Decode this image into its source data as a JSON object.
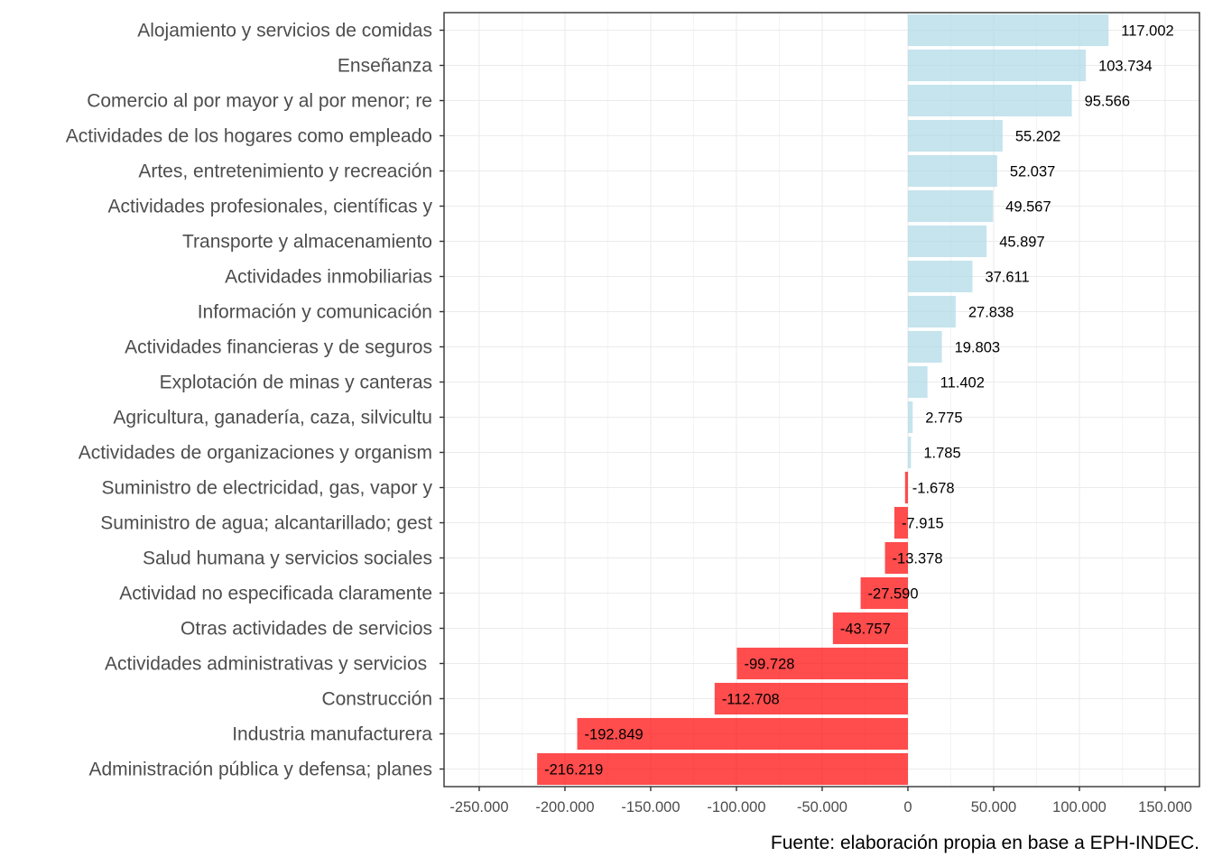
{
  "chart_data": {
    "type": "bar",
    "orientation": "horizontal",
    "title": "",
    "xlabel": "",
    "ylabel": "",
    "caption": "Fuente: elaboración propia en base a EPH-INDEC.",
    "xlim": [
      -270500,
      170000
    ],
    "x_ticks": [
      -250000,
      -200000,
      -150000,
      -100000,
      -50000,
      0,
      50000,
      100000,
      150000
    ],
    "x_tick_labels": [
      "-250.000",
      "-200.000",
      "-150.000",
      "-100.000",
      "-50.000",
      "0",
      "50.000",
      "100.000",
      "150.000"
    ],
    "grid": true,
    "legend": "none",
    "colors": {
      "positive": "#add8e6",
      "negative": "#ff0000",
      "bar_opacity": 0.7
    },
    "categories": [
      "Alojamiento y servicios de comidas",
      "Enseñanza",
      "Comercio al por mayor y al por menor; re",
      "Actividades de los hogares como empleado",
      "Artes, entretenimiento y recreación",
      "Actividades profesionales, científicas y",
      "Transporte y almacenamiento",
      "Actividades inmobiliarias",
      "Información y comunicación",
      "Actividades financieras y de seguros",
      "Explotación de minas y canteras",
      "Agricultura, ganadería, caza, silvicultu",
      "Actividades de organizaciones y organism",
      "Suministro de electricidad, gas, vapor y",
      "Suministro de agua; alcantarillado; gest",
      "Salud humana y servicios sociales",
      "Actividad no especificada claramente",
      "Otras actividades de servicios",
      "Actividades administrativas y servicios ",
      "Construcción",
      "Industria manufacturera",
      "Administración pública y defensa; planes"
    ],
    "values": [
      117002,
      103734,
      95566,
      55202,
      52037,
      49567,
      45897,
      37611,
      27838,
      19803,
      11402,
      2775,
      1785,
      -1678,
      -7915,
      -13378,
      -27590,
      -43757,
      -99728,
      -112708,
      -192849,
      -216219
    ],
    "value_labels": [
      "117.002",
      "103.734",
      "95.566",
      "55.202",
      "52.037",
      "49.567",
      "45.897",
      "37.611",
      "27.838",
      "19.803",
      "11.402",
      "2.775",
      "1.785",
      "-1.678",
      "-7.915",
      "-13.378",
      "-27.590",
      "-43.757",
      "-99.728",
      "-112.708",
      "-192.849",
      "-216.219"
    ]
  }
}
